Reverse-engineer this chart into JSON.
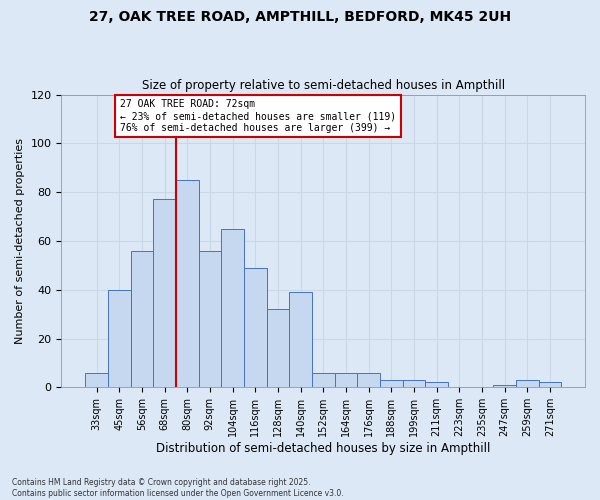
{
  "title_line1": "27, OAK TREE ROAD, AMPTHILL, BEDFORD, MK45 2UH",
  "title_line2": "Size of property relative to semi-detached houses in Ampthill",
  "xlabel": "Distribution of semi-detached houses by size in Ampthill",
  "ylabel": "Number of semi-detached properties",
  "bar_labels": [
    "33sqm",
    "45sqm",
    "56sqm",
    "68sqm",
    "80sqm",
    "92sqm",
    "104sqm",
    "116sqm",
    "128sqm",
    "140sqm",
    "152sqm",
    "164sqm",
    "176sqm",
    "188sqm",
    "199sqm",
    "211sqm",
    "223sqm",
    "235sqm",
    "247sqm",
    "259sqm",
    "271sqm"
  ],
  "bar_heights": [
    6,
    40,
    56,
    77,
    85,
    56,
    65,
    49,
    32,
    39,
    6,
    6,
    6,
    3,
    3,
    2,
    0,
    0,
    1,
    3,
    2
  ],
  "bar_color": "#c5d8f0",
  "bar_edge_color": "#4472c4",
  "vline_x_idx": 3,
  "vline_color": "#cc0000",
  "annotation_title": "27 OAK TREE ROAD: 72sqm",
  "annotation_line2": "← 23% of semi-detached houses are smaller (119)",
  "annotation_line3": "76% of semi-detached houses are larger (399) →",
  "annotation_box_color": "#ffffff",
  "annotation_box_edge": "#cc0000",
  "ylim": [
    0,
    120
  ],
  "yticks": [
    0,
    20,
    40,
    60,
    80,
    100,
    120
  ],
  "grid_color": "#c8d8e8",
  "bg_color": "#dce8f5",
  "plot_bg_color": "#dce8f5",
  "footnote_line1": "Contains HM Land Registry data © Crown copyright and database right 2025.",
  "footnote_line2": "Contains public sector information licensed under the Open Government Licence v3.0."
}
